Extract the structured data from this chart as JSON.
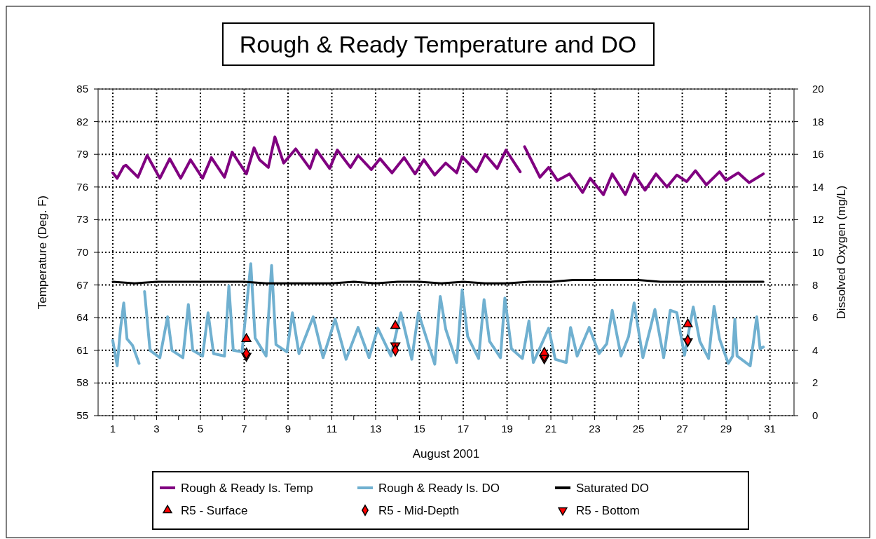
{
  "chart_data": {
    "type": "line",
    "title": "Rough & Ready Temperature and DO",
    "xlabel": "August 2001",
    "ylabel": "Temperature (Deg. F)",
    "y2label": "Dissolved Oxygen (mg/L)",
    "xlim": [
      0.33,
      32.1
    ],
    "xticks": [
      1,
      {
        "value": 2,
        "label": null
      },
      3,
      {
        "value": 4,
        "label": null
      },
      5,
      {
        "value": 6,
        "label": null
      },
      7,
      {
        "value": 8,
        "label": null
      },
      9,
      {
        "value": 10,
        "label": null
      },
      11,
      {
        "value": 12,
        "label": null
      },
      13,
      {
        "value": 14,
        "label": null
      },
      15,
      {
        "value": 16,
        "label": null
      },
      17,
      {
        "value": 18,
        "label": null
      },
      19,
      {
        "value": 20,
        "label": null
      },
      21,
      {
        "value": 22,
        "label": null
      },
      23,
      {
        "value": 24,
        "label": null
      },
      25,
      {
        "value": 26,
        "label": null
      },
      27,
      {
        "value": 28,
        "label": null
      },
      29,
      {
        "value": 30,
        "label": null
      },
      31
    ],
    "ylim": [
      55,
      85
    ],
    "yticks": [
      55,
      58,
      61,
      64,
      67,
      70,
      73,
      76,
      79,
      82,
      85
    ],
    "y2lim": [
      0,
      20
    ],
    "y2ticks": [
      0,
      2,
      4,
      6,
      8,
      10,
      12,
      14,
      16,
      18,
      20
    ],
    "grid": true,
    "legend": "bottom",
    "series": [
      {
        "name": "Rough & Ready Is. Temp",
        "type": "line",
        "axis": "y",
        "color": "#800080",
        "x": [
          1.0,
          1.2,
          1.5,
          1.6,
          2.15,
          2.57,
          3.15,
          3.6,
          4.1,
          4.55,
          5.1,
          5.5,
          6.1,
          6.45,
          7.1,
          7.45,
          7.7,
          8.1,
          8.4,
          8.8,
          9.35,
          10.0,
          10.3,
          10.9,
          11.25,
          11.85,
          12.2,
          12.8,
          13.2,
          13.75,
          14.3,
          14.8,
          15.2,
          15.7,
          16.2,
          16.7,
          16.95,
          17.6,
          18.0,
          18.55,
          18.95,
          19.6,
          19.7,
          19.8,
          20.5,
          20.9,
          21.3,
          21.85,
          22.45,
          22.8,
          23.4,
          23.8,
          24.4,
          24.8,
          25.3,
          25.8,
          26.3,
          26.75,
          27.2,
          27.6,
          28.1,
          28.7,
          29.0,
          29.55,
          30.05,
          30.7
        ],
        "values": [
          77.3,
          76.8,
          77.9,
          78.0,
          76.9,
          78.9,
          76.8,
          78.6,
          76.8,
          78.5,
          76.8,
          78.7,
          76.9,
          79.2,
          77.2,
          79.6,
          78.5,
          77.8,
          80.6,
          78.2,
          79.5,
          77.7,
          79.4,
          77.7,
          79.4,
          77.8,
          78.9,
          77.6,
          78.6,
          77.3,
          78.7,
          77.2,
          78.5,
          77.1,
          78.2,
          77.3,
          78.8,
          77.4,
          79.0,
          77.7,
          79.4,
          77.4,
          null,
          79.7,
          76.9,
          77.8,
          76.6,
          77.2,
          75.5,
          76.8,
          75.3,
          77.2,
          75.3,
          77.2,
          75.7,
          77.2,
          76.0,
          77.1,
          76.5,
          77.5,
          76.2,
          77.4,
          76.6,
          77.3,
          76.4,
          77.2
        ]
      },
      {
        "name": "Rough & Ready Is. DO",
        "type": "line",
        "axis": "y2",
        "color": "#70b0d0",
        "x": [
          1.0,
          1.2,
          1.35,
          1.5,
          1.65,
          1.9,
          2.2,
          2.3,
          2.45,
          2.7,
          3.15,
          3.5,
          3.7,
          4.2,
          4.45,
          4.65,
          5.1,
          5.35,
          5.6,
          6.1,
          6.3,
          6.5,
          6.9,
          7.3,
          7.5,
          8.0,
          8.25,
          8.45,
          8.95,
          9.2,
          9.5,
          10.15,
          10.6,
          11.15,
          11.65,
          12.2,
          12.7,
          13.1,
          13.7,
          14.15,
          14.65,
          14.95,
          15.7,
          15.95,
          16.2,
          16.7,
          16.95,
          17.2,
          17.7,
          17.95,
          18.2,
          18.7,
          18.9,
          19.2,
          19.7,
          20.0,
          20.2,
          20.9,
          21.2,
          21.7,
          21.9,
          22.2,
          22.75,
          23.2,
          23.55,
          23.8,
          24.2,
          24.55,
          24.8,
          25.2,
          25.55,
          25.75,
          26.15,
          26.45,
          26.75,
          27.1,
          27.5,
          27.8,
          28.2,
          28.45,
          28.7,
          29.1,
          29.3,
          29.4,
          29.5,
          30.1,
          30.4,
          30.55,
          30.7
        ],
        "values": [
          4.6,
          3.05,
          5.3,
          6.9,
          4.7,
          4.3,
          3.2,
          null,
          7.6,
          4.0,
          3.55,
          6.05,
          4.0,
          3.55,
          6.8,
          4.0,
          3.65,
          6.3,
          3.8,
          3.65,
          7.95,
          4.0,
          3.9,
          9.3,
          4.75,
          3.65,
          9.2,
          4.35,
          3.9,
          6.3,
          3.8,
          6.05,
          3.55,
          5.9,
          3.45,
          5.4,
          3.55,
          5.35,
          3.65,
          6.3,
          3.45,
          6.3,
          3.15,
          7.3,
          5.3,
          3.25,
          7.7,
          4.85,
          3.5,
          7.1,
          4.55,
          3.55,
          7.2,
          4.1,
          3.5,
          5.8,
          3.25,
          5.35,
          3.45,
          3.25,
          5.4,
          3.65,
          5.4,
          3.8,
          4.4,
          6.45,
          3.65,
          4.85,
          6.9,
          3.55,
          5.4,
          6.5,
          3.55,
          6.45,
          6.3,
          3.7,
          6.65,
          4.55,
          3.5,
          6.7,
          4.7,
          3.2,
          3.65,
          5.9,
          3.65,
          3.05,
          6.05,
          4.1,
          4.2
        ]
      },
      {
        "name": "Saturated DO",
        "type": "line",
        "axis": "y2",
        "color": "#000000",
        "x": [
          1,
          2,
          3,
          4,
          5,
          6,
          7,
          8,
          9,
          10,
          11,
          12,
          13,
          14,
          15,
          16,
          17,
          18,
          19,
          20,
          21,
          22,
          23,
          24,
          25,
          26,
          27,
          28,
          29,
          30,
          30.7
        ],
        "values": [
          8.2,
          8.1,
          8.2,
          8.2,
          8.2,
          8.2,
          8.2,
          8.1,
          8.1,
          8.1,
          8.1,
          8.2,
          8.1,
          8.2,
          8.2,
          8.1,
          8.2,
          8.1,
          8.1,
          8.2,
          8.2,
          8.3,
          8.3,
          8.3,
          8.3,
          8.2,
          8.2,
          8.2,
          8.2,
          8.2,
          8.2
        ]
      },
      {
        "name": "R5 - Surface",
        "type": "scatter",
        "axis": "y2",
        "marker": "triangle",
        "color": "#ff0000",
        "x": [
          7.1,
          13.9,
          20.7,
          27.25
        ],
        "values": [
          4.7,
          5.5,
          3.85,
          5.6
        ]
      },
      {
        "name": "R5 - Mid-Depth",
        "type": "scatter",
        "axis": "y2",
        "marker": "diamond",
        "color": "#ff0000",
        "x": [
          7.1,
          13.9,
          20.7,
          27.25
        ],
        "values": [
          3.8,
          4.0,
          3.65,
          4.6
        ]
      },
      {
        "name": "R5 - Bottom",
        "type": "scatter",
        "axis": "y2",
        "marker": "triangle-down",
        "color": "#ff0000",
        "x": [
          7.1,
          13.9,
          20.7,
          27.25
        ],
        "values": [
          3.65,
          4.3,
          3.5,
          4.55
        ]
      }
    ]
  }
}
